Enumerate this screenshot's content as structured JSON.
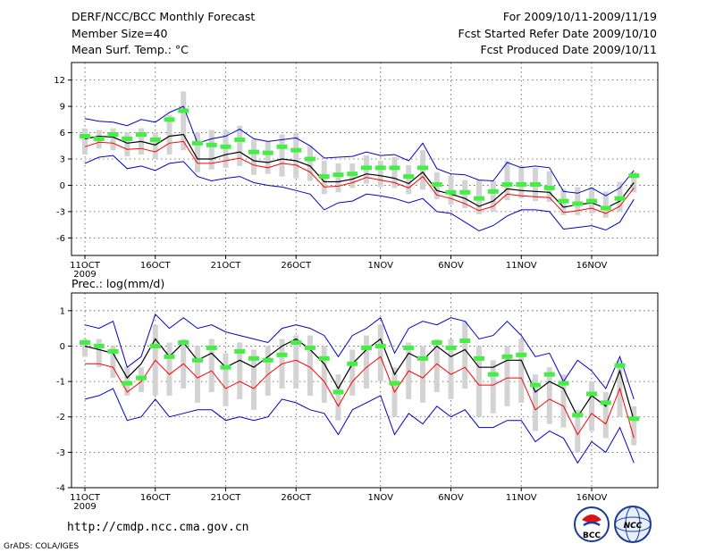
{
  "header": {
    "title": "DERF/NCC/BCC Monthly Forecast",
    "member_size": "Member Size=40",
    "variable": "Mean Surf. Temp.: °C",
    "period": "For 2009/10/11-2009/11/19",
    "refer_date": "Fcst Started Refer Date 2009/10/10",
    "produced_date": "Fcst Produced Date 2009/10/11"
  },
  "footer": {
    "url": "http://cmdp.ncc.cma.gov.cn",
    "credit": "GrADS: COLA/IGES",
    "logo_bcc": "BCC",
    "logo_ncc": "NCC"
  },
  "colors": {
    "ensemble_mean": "#000000",
    "member_median": "#ff0000",
    "envelope": "#0000cc",
    "box": "#d3d3d3",
    "marker": "#44ee44",
    "frame": "#000000",
    "grid": "#555555"
  },
  "chart_data": [
    {
      "type": "line",
      "title": "Mean Surf. Temp.: °C",
      "xlabel": "",
      "ylabel": "°C",
      "ylim": [
        -8,
        14
      ],
      "yticks": [
        12,
        9,
        6,
        3,
        0,
        -3,
        -6
      ],
      "xticks": [
        {
          "day": 1,
          "label": "11OCT"
        },
        {
          "day": 6,
          "label": "16OCT"
        },
        {
          "day": 11,
          "label": "21OCT"
        },
        {
          "day": 16,
          "label": "26OCT"
        },
        {
          "day": 22,
          "label": "1NOV"
        },
        {
          "day": 27,
          "label": "6NOV"
        },
        {
          "day": 32,
          "label": "11NOV"
        },
        {
          "day": 37,
          "label": "16NOV"
        }
      ],
      "year_label": "2009",
      "x": [
        1,
        2,
        3,
        4,
        5,
        6,
        7,
        8,
        9,
        10,
        11,
        12,
        13,
        14,
        15,
        16,
        17,
        18,
        19,
        20,
        21,
        22,
        23,
        24,
        25,
        26,
        27,
        28,
        29,
        30,
        31,
        32,
        33,
        34,
        35,
        36,
        37,
        38,
        39,
        40
      ],
      "series": [
        {
          "name": "upper",
          "values": [
            7.6,
            7.3,
            7.2,
            6.8,
            7.5,
            7.2,
            8.3,
            9.0,
            4.8,
            5.3,
            5.6,
            6.4,
            5.3,
            5.0,
            5.2,
            5.4,
            4.5,
            3.1,
            3.2,
            3.3,
            3.8,
            3.4,
            3.5,
            2.8,
            4.8,
            1.9,
            1.3,
            1.2,
            0.6,
            0.5,
            2.6,
            2.0,
            2.2,
            2.0,
            -0.7,
            -0.9,
            -0.3,
            -1.2,
            -0.3,
            1.7
          ]
        },
        {
          "name": "ensemble_mean",
          "values": [
            5.3,
            5.6,
            5.5,
            4.8,
            5.0,
            4.6,
            5.6,
            5.8,
            3.0,
            3.0,
            3.5,
            3.8,
            2.8,
            2.6,
            3.0,
            2.8,
            2.2,
            0.4,
            0.4,
            0.7,
            1.3,
            1.1,
            0.8,
            0.2,
            1.5,
            -0.6,
            -1.0,
            -1.5,
            -2.4,
            -1.8,
            -0.4,
            -0.6,
            -0.7,
            -0.8,
            -2.5,
            -2.2,
            -2.0,
            -2.6,
            -1.8,
            0.3
          ]
        },
        {
          "name": "member_median",
          "values": [
            4.4,
            4.9,
            4.8,
            4.1,
            4.2,
            3.8,
            4.8,
            5.0,
            2.5,
            2.5,
            2.8,
            3.1,
            2.3,
            2.0,
            2.5,
            2.3,
            1.5,
            -0.2,
            -0.1,
            0.3,
            0.9,
            0.6,
            0.3,
            -0.3,
            1.0,
            -1.1,
            -1.5,
            -2.1,
            -2.9,
            -2.4,
            -1.0,
            -1.2,
            -1.3,
            -1.4,
            -3.1,
            -2.9,
            -2.6,
            -3.2,
            -2.4,
            -0.3
          ]
        },
        {
          "name": "lower",
          "values": [
            2.5,
            3.2,
            3.4,
            1.9,
            2.2,
            1.7,
            2.5,
            2.7,
            1.0,
            0.5,
            0.8,
            1.0,
            0.3,
            0.0,
            -0.2,
            -0.6,
            -1.0,
            -2.8,
            -2.0,
            -1.8,
            -1.0,
            -1.2,
            -1.5,
            -2.0,
            -1.5,
            -3.0,
            -3.2,
            -4.2,
            -5.2,
            -4.6,
            -3.5,
            -2.8,
            -2.8,
            -3.0,
            -5.0,
            -4.8,
            -4.6,
            -5.1,
            -4.2,
            -1.6
          ]
        },
        {
          "name": "member_marker",
          "values": [
            5.6,
            5.3,
            5.8,
            5.3,
            5.8,
            5.2,
            7.5,
            8.5,
            4.8,
            4.6,
            4.4,
            5.2,
            3.8,
            3.7,
            4.4,
            4.0,
            3.0,
            1.0,
            1.2,
            1.3,
            2.0,
            2.0,
            2.0,
            1.0,
            2.0,
            0.1,
            -0.8,
            -0.8,
            -1.5,
            -0.7,
            0.1,
            0.1,
            0.1,
            -0.3,
            -1.8,
            -2.1,
            -1.8,
            -2.6,
            -1.5,
            1.1
          ]
        },
        {
          "name": "box_top",
          "values": [
            6.5,
            6.3,
            6.5,
            6.0,
            6.5,
            6.0,
            8.0,
            10.7,
            6.0,
            6.3,
            6.3,
            6.8,
            5.2,
            5.0,
            5.8,
            6.0,
            4.5,
            2.8,
            2.5,
            2.5,
            3.4,
            2.8,
            3.2,
            2.3,
            4.0,
            1.5,
            1.1,
            0.6,
            0.6,
            0.5,
            2.8,
            2.2,
            2.0,
            1.6,
            -0.4,
            -0.2,
            -0.2,
            -0.7,
            0.4,
            1.5
          ]
        },
        {
          "name": "box_bottom",
          "values": [
            3.5,
            4.2,
            4.0,
            3.3,
            3.5,
            3.0,
            3.5,
            4.0,
            1.5,
            1.8,
            2.0,
            2.2,
            1.2,
            1.3,
            1.0,
            0.8,
            0.5,
            -1.0,
            -0.8,
            -0.3,
            0.2,
            -0.2,
            -0.3,
            -1.0,
            -0.5,
            -1.6,
            -2.2,
            -2.6,
            -3.3,
            -3.0,
            -1.7,
            -1.5,
            -1.8,
            -1.9,
            -3.4,
            -3.4,
            -3.2,
            -3.7,
            -3.0,
            -0.8
          ]
        }
      ]
    },
    {
      "type": "line",
      "title": "Prec.: log(mm/d)",
      "xlabel": "",
      "ylabel": "log(mm/d)",
      "ylim": [
        -4,
        1.5
      ],
      "yticks": [
        1,
        0,
        -1,
        -2,
        -3,
        -4
      ],
      "xticks": [
        {
          "day": 1,
          "label": "11OCT"
        },
        {
          "day": 6,
          "label": "16OCT"
        },
        {
          "day": 11,
          "label": "21OCT"
        },
        {
          "day": 16,
          "label": "26OCT"
        },
        {
          "day": 22,
          "label": "1NOV"
        },
        {
          "day": 27,
          "label": "6NOV"
        },
        {
          "day": 32,
          "label": "11NOV"
        },
        {
          "day": 37,
          "label": "16NOV"
        }
      ],
      "year_label": "2009",
      "x": [
        1,
        2,
        3,
        4,
        5,
        6,
        7,
        8,
        9,
        10,
        11,
        12,
        13,
        14,
        15,
        16,
        17,
        18,
        19,
        20,
        21,
        22,
        23,
        24,
        25,
        26,
        27,
        28,
        29,
        30,
        31,
        32,
        33,
        34,
        35,
        36,
        37,
        38,
        39,
        40
      ],
      "series": [
        {
          "name": "upper",
          "values": [
            0.6,
            0.5,
            0.7,
            -0.6,
            -0.3,
            0.9,
            0.5,
            0.8,
            0.5,
            0.6,
            0.4,
            0.3,
            0.2,
            0.1,
            0.5,
            0.6,
            0.5,
            0.3,
            -0.3,
            0.3,
            0.5,
            0.8,
            -0.2,
            0.5,
            0.7,
            0.6,
            0.8,
            0.7,
            0.2,
            0.3,
            0.7,
            0.3,
            -0.3,
            -0.2,
            -1.0,
            -0.4,
            -0.7,
            -1.2,
            -0.3,
            -1.5
          ]
        },
        {
          "name": "ensemble_mean",
          "values": [
            0.0,
            -0.1,
            -0.2,
            -0.9,
            -0.5,
            0.2,
            -0.3,
            0.1,
            -0.4,
            -0.2,
            -0.6,
            -0.4,
            -0.6,
            -0.3,
            0.0,
            0.2,
            -0.1,
            -0.5,
            -1.2,
            -0.5,
            -0.1,
            0.2,
            -0.8,
            -0.2,
            -0.4,
            0.0,
            -0.3,
            -0.1,
            -0.6,
            -0.6,
            -0.4,
            -0.4,
            -1.3,
            -1.0,
            -1.2,
            -2.0,
            -1.4,
            -1.7,
            -0.7,
            -2.1
          ]
        },
        {
          "name": "member_median",
          "values": [
            -0.5,
            -0.5,
            -0.6,
            -1.3,
            -1.0,
            -0.4,
            -0.8,
            -0.5,
            -0.9,
            -0.7,
            -1.2,
            -1.0,
            -1.2,
            -0.8,
            -0.5,
            -0.4,
            -0.6,
            -1.0,
            -1.7,
            -1.0,
            -0.6,
            -0.3,
            -1.3,
            -0.7,
            -0.9,
            -0.5,
            -0.8,
            -0.6,
            -1.1,
            -1.1,
            -0.9,
            -0.9,
            -1.8,
            -1.5,
            -1.7,
            -2.5,
            -1.9,
            -2.2,
            -1.2,
            -2.6
          ]
        },
        {
          "name": "lower",
          "values": [
            -1.5,
            -1.4,
            -1.2,
            -2.1,
            -2.0,
            -1.5,
            -2.0,
            -1.9,
            -1.8,
            -1.8,
            -2.1,
            -2.0,
            -2.1,
            -2.0,
            -1.5,
            -1.6,
            -1.8,
            -1.9,
            -2.5,
            -1.8,
            -1.6,
            -1.4,
            -2.5,
            -1.9,
            -2.2,
            -1.7,
            -2.0,
            -1.8,
            -2.3,
            -2.3,
            -2.1,
            -2.1,
            -2.7,
            -2.4,
            -2.6,
            -3.3,
            -2.7,
            -3.0,
            -2.3,
            -3.3
          ]
        },
        {
          "name": "member_marker",
          "values": [
            0.1,
            0.0,
            -0.15,
            -1.05,
            -0.9,
            0.0,
            -0.3,
            0.1,
            -0.4,
            -0.05,
            -0.6,
            -0.15,
            -0.35,
            -0.4,
            -0.25,
            0.1,
            -0.05,
            -0.35,
            -1.3,
            -0.5,
            -0.05,
            0.0,
            -1.05,
            -0.05,
            -0.35,
            0.1,
            -0.05,
            0.15,
            -0.35,
            -0.8,
            -0.3,
            -0.25,
            -1.1,
            -0.8,
            -1.05,
            -1.95,
            -1.35,
            -1.6,
            -0.55,
            -2.05
          ]
        },
        {
          "name": "box_top",
          "values": [
            0.2,
            0.2,
            0.0,
            -0.6,
            -0.6,
            0.6,
            0.1,
            0.2,
            0.0,
            0.2,
            -0.2,
            0.1,
            -0.1,
            0.0,
            0.2,
            0.3,
            0.3,
            0.0,
            -0.8,
            -0.1,
            0.3,
            0.6,
            -0.6,
            0.1,
            0.0,
            0.2,
            0.2,
            0.7,
            0.0,
            -0.4,
            0.0,
            0.2,
            -0.8,
            -0.6,
            -0.8,
            -1.8,
            -1.0,
            -1.3,
            -0.4,
            -1.7
          ]
        },
        {
          "name": "box_bottom",
          "values": [
            -0.3,
            -0.6,
            -0.9,
            -1.4,
            -1.3,
            -1.4,
            -1.4,
            -1.2,
            -1.6,
            -1.3,
            -1.7,
            -1.5,
            -1.8,
            -1.4,
            -1.2,
            -1.2,
            -1.4,
            -1.6,
            -2.1,
            -1.4,
            -1.2,
            -1.0,
            -2.0,
            -1.5,
            -1.6,
            -1.3,
            -1.5,
            -1.2,
            -2.0,
            -1.9,
            -1.7,
            -1.6,
            -2.4,
            -2.2,
            -2.3,
            -3.0,
            -2.4,
            -2.6,
            -2.0,
            -2.8
          ]
        }
      ]
    }
  ]
}
